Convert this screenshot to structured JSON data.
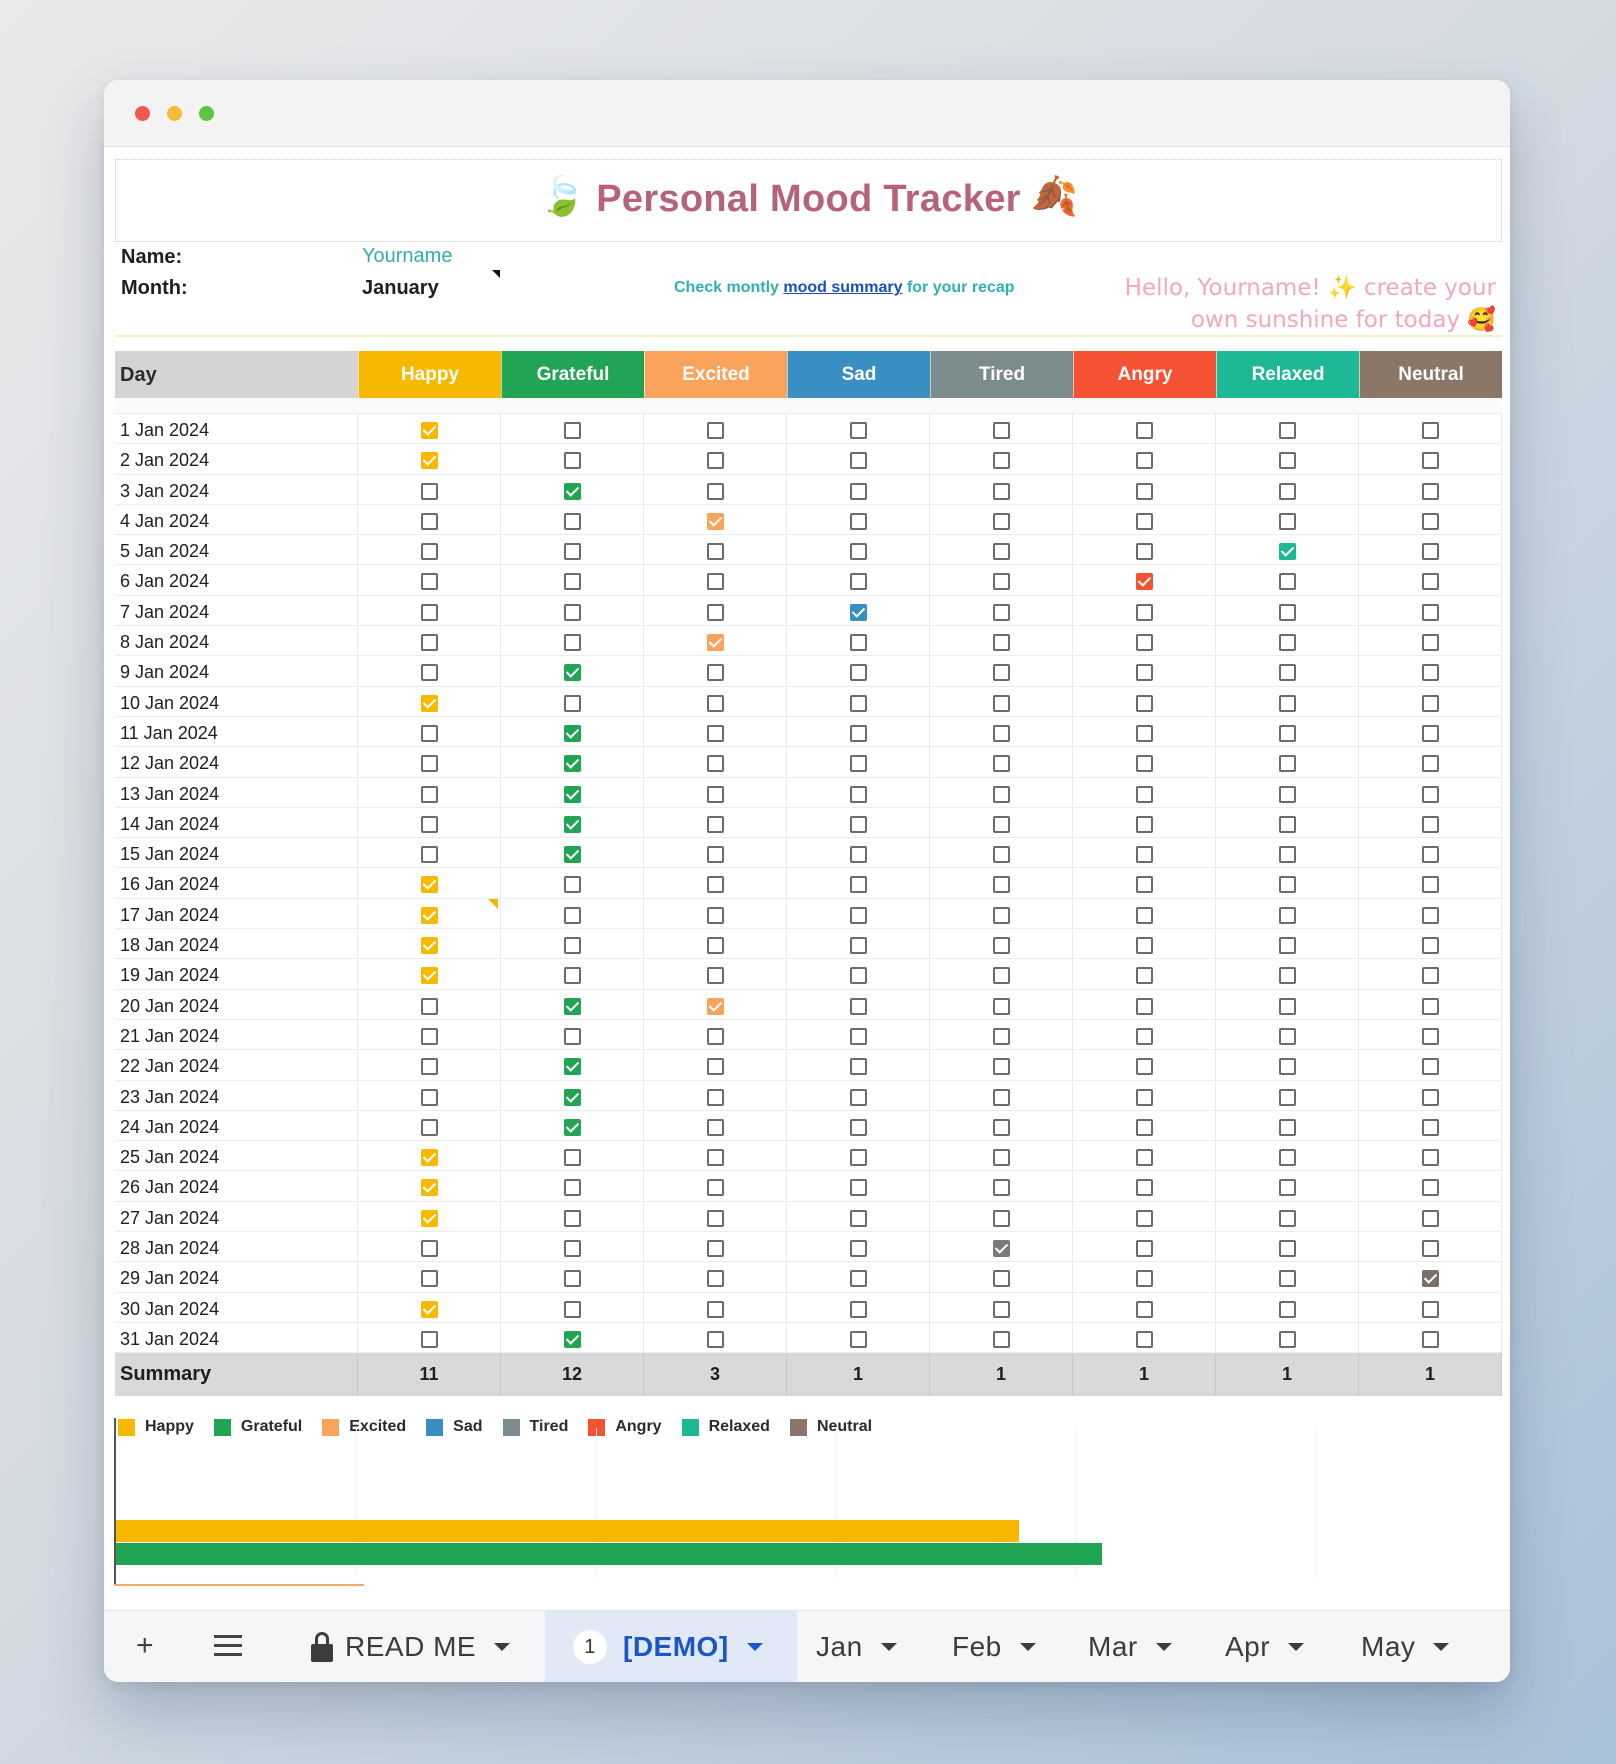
{
  "app": {
    "title": "Personal Mood Tracker",
    "title_emoji_left": "🍃",
    "title_emoji_right": "🍂"
  },
  "info": {
    "name_label": "Name:",
    "name_value": "Yourname",
    "month_label": "Month:",
    "month_value": "January",
    "recap_prefix": "Check montly ",
    "recap_link": "mood summary",
    "recap_suffix": " for your recap",
    "hello_line1": "Hello, Yourname! ✨ create your",
    "hello_line2": "own sunshine for today 🥰"
  },
  "grid": {
    "day_header": "Day",
    "moods": [
      {
        "label": "Happy",
        "color": "#f7b900"
      },
      {
        "label": "Grateful",
        "color": "#22a455"
      },
      {
        "label": "Excited",
        "color": "#f9a35c"
      },
      {
        "label": "Sad",
        "color": "#3a8fc2"
      },
      {
        "label": "Tired",
        "color": "#7c8b8b"
      },
      {
        "label": "Angry",
        "color": "#f45233"
      },
      {
        "label": "Relaxed",
        "color": "#1fb894"
      },
      {
        "label": "Neutral",
        "color": "#8a7768"
      }
    ],
    "check_colors": [
      "#f7b900",
      "#22a455",
      "#f9a35c",
      "#3a8fc2",
      "#7a7a7a",
      "#f45233",
      "#1fb894",
      "#7a6f6a"
    ],
    "days": [
      {
        "label": "1 Jan 2024",
        "mood": 0
      },
      {
        "label": "2 Jan 2024",
        "mood": 0
      },
      {
        "label": "3 Jan 2024",
        "mood": 1
      },
      {
        "label": "4 Jan 2024",
        "mood": 2
      },
      {
        "label": "5 Jan 2024",
        "mood": 6
      },
      {
        "label": "6 Jan 2024",
        "mood": 5
      },
      {
        "label": "7 Jan 2024",
        "mood": 3
      },
      {
        "label": "8 Jan 2024",
        "mood": 2
      },
      {
        "label": "9 Jan 2024",
        "mood": 1
      },
      {
        "label": "10 Jan 2024",
        "mood": 0
      },
      {
        "label": "11 Jan 2024",
        "mood": 1
      },
      {
        "label": "12 Jan 2024",
        "mood": 1
      },
      {
        "label": "13 Jan 2024",
        "mood": 1
      },
      {
        "label": "14 Jan 2024",
        "mood": 1
      },
      {
        "label": "15 Jan 2024",
        "mood": 1
      },
      {
        "label": "16 Jan 2024",
        "mood": 0
      },
      {
        "label": "17 Jan 2024",
        "mood": 0
      },
      {
        "label": "18 Jan 2024",
        "mood": 0
      },
      {
        "label": "19 Jan 2024",
        "mood": 0
      },
      {
        "label": "20 Jan 2024",
        "mood": [
          1,
          2
        ]
      },
      {
        "label": "21 Jan 2024",
        "mood": -1
      },
      {
        "label": "22 Jan 2024",
        "mood": 1
      },
      {
        "label": "23 Jan 2024",
        "mood": 1
      },
      {
        "label": "24 Jan 2024",
        "mood": 1
      },
      {
        "label": "25 Jan 2024",
        "mood": 0
      },
      {
        "label": "26 Jan 2024",
        "mood": 0
      },
      {
        "label": "27 Jan 2024",
        "mood": 0
      },
      {
        "label": "28 Jan 2024",
        "mood": 4
      },
      {
        "label": "29 Jan 2024",
        "mood": 7
      },
      {
        "label": "30 Jan 2024",
        "mood": 0
      },
      {
        "label": "31 Jan 2024",
        "mood": 1
      }
    ],
    "summary_label": "Summary",
    "summary_values": [
      "11",
      "12",
      "3",
      "1",
      "1",
      "1",
      "1",
      "1"
    ]
  },
  "chart_data": {
    "type": "bar",
    "orientation": "horizontal",
    "legend": [
      "Happy",
      "Grateful",
      "Excited",
      "Sad",
      "Tired",
      "Angry",
      "Relaxed",
      "Neutral"
    ],
    "legend_placement": "top-left",
    "series": [
      {
        "name": "Happy",
        "values": [
          11
        ]
      },
      {
        "name": "Grateful",
        "values": [
          12
        ]
      },
      {
        "name": "Excited",
        "values": [
          3
        ]
      }
    ],
    "xlim": [
      0,
      18
    ]
  },
  "tabs": {
    "add_label": "+",
    "items": [
      {
        "label": "READ ME",
        "locked": true
      },
      {
        "label": "[DEMO]",
        "badge": "1",
        "active": true
      },
      {
        "label": "Jan"
      },
      {
        "label": "Feb"
      },
      {
        "label": "Mar"
      },
      {
        "label": "Apr"
      },
      {
        "label": "May"
      }
    ]
  }
}
